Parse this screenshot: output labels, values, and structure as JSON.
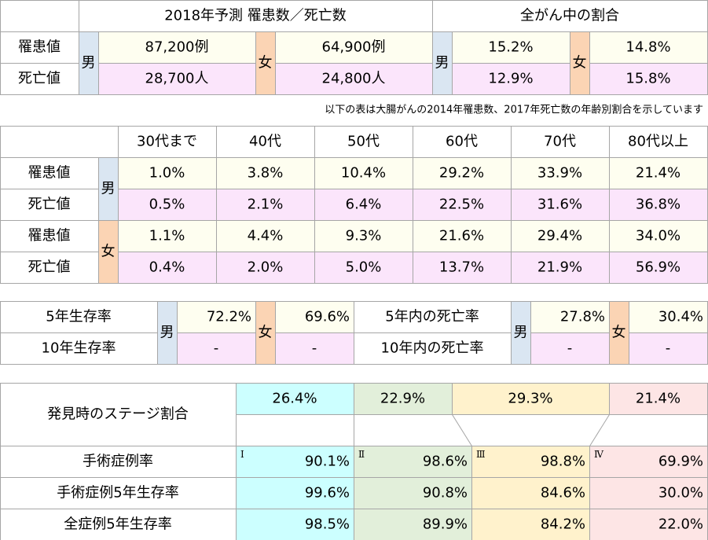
{
  "forecast": {
    "header_left": "2018年予測 罹患数／死亡数",
    "header_right": "全がん中の割合",
    "male": "男",
    "female": "女",
    "rows": [
      {
        "label": "罹患値",
        "male": "87,200例",
        "female": "64,900例",
        "male_share": "15.2%",
        "female_share": "14.8%"
      },
      {
        "label": "死亡値",
        "male": "28,700人",
        "female": "24,800人",
        "male_share": "12.9%",
        "female_share": "15.8%"
      }
    ]
  },
  "note": "以下の表は大腸がんの2014年罹患数、2017年死亡数の年齢別割合を示しています",
  "age_table": {
    "columns": [
      "30代まで",
      "40代",
      "50代",
      "60代",
      "70代",
      "80代以上"
    ],
    "groups": [
      {
        "sex": "男",
        "rows": [
          {
            "label": "罹患値",
            "values": [
              "1.0%",
              "3.8%",
              "10.4%",
              "29.2%",
              "33.9%",
              "21.4%"
            ]
          },
          {
            "label": "死亡値",
            "values": [
              "0.5%",
              "2.1%",
              "6.4%",
              "22.5%",
              "31.6%",
              "36.8%"
            ]
          }
        ]
      },
      {
        "sex": "女",
        "rows": [
          {
            "label": "罹患値",
            "values": [
              "1.1%",
              "4.4%",
              "9.3%",
              "21.6%",
              "29.4%",
              "34.0%"
            ]
          },
          {
            "label": "死亡値",
            "values": [
              "0.4%",
              "2.0%",
              "5.0%",
              "13.7%",
              "21.9%",
              "56.9%"
            ]
          }
        ]
      }
    ]
  },
  "survival": {
    "male": "男",
    "female": "女",
    "rows": [
      {
        "label": "5年生存率",
        "male": "72.2%",
        "female": "69.6%",
        "label2": "5年内の死亡率",
        "male2": "27.8%",
        "female2": "30.4%"
      },
      {
        "label": "10年生存率",
        "male": "-",
        "female": "-",
        "label2": "10年内の死亡率",
        "male2": "-",
        "female2": "-"
      }
    ]
  },
  "stage": {
    "label": "発見時のステージ割合",
    "shares": [
      "26.4%",
      "22.9%",
      "29.3%",
      "21.4%"
    ],
    "numerals": [
      "Ⅰ",
      "Ⅱ",
      "Ⅲ",
      "Ⅳ"
    ],
    "rows": [
      {
        "label": "手術症例率",
        "values": [
          "90.1%",
          "98.6%",
          "98.8%",
          "69.9%"
        ]
      },
      {
        "label": "手術症例5年生存率",
        "values": [
          "99.6%",
          "90.8%",
          "84.6%",
          "30.0%"
        ]
      },
      {
        "label": "全症例5年生存率",
        "values": [
          "98.5%",
          "89.9%",
          "84.2%",
          "22.0%"
        ]
      }
    ]
  }
}
